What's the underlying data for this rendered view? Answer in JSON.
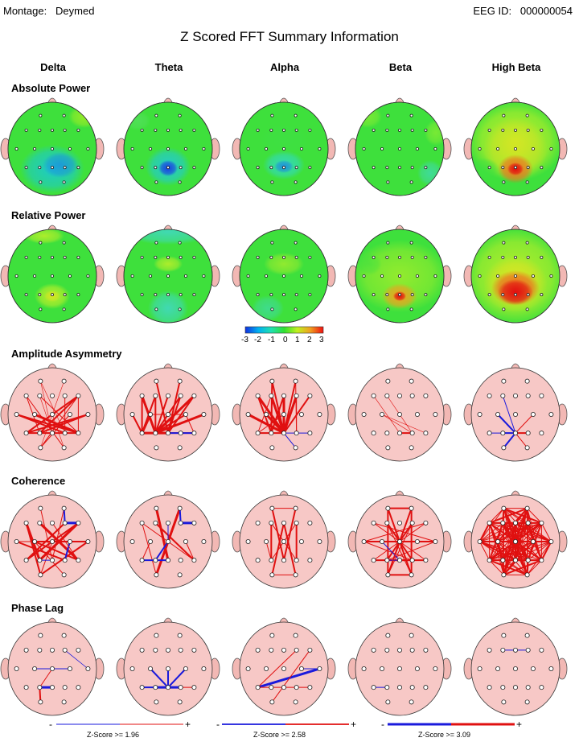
{
  "header": {
    "montage_label": "Montage:",
    "montage_value": "Deymed",
    "eeg_id_label": "EEG ID:",
    "eeg_id_value": "000000054"
  },
  "title": "Z Scored FFT Summary Information",
  "bands": [
    "Delta",
    "Theta",
    "Alpha",
    "Beta",
    "High Beta"
  ],
  "sections": {
    "absolute_power": "Absolute Power",
    "relative_power": "Relative Power",
    "amplitude_asymmetry": "Amplitude Asymmetry",
    "coherence": "Coherence",
    "phase_lag": "Phase Lag"
  },
  "colorbar": {
    "ticks": [
      "-3",
      "-2",
      "-1",
      "0",
      "1",
      "2",
      "3"
    ],
    "colors": [
      "#1030e0",
      "#00b0f0",
      "#20e0b0",
      "#30e030",
      "#c0f020",
      "#f0a020",
      "#f01010"
    ]
  },
  "zscore_legend": [
    {
      "minus": "-",
      "label": "Z-Score >= 1.96",
      "plus": "+",
      "neg_color": "#1a1adc",
      "pos_color": "#e01010"
    },
    {
      "minus": "-",
      "label": "Z-Score >= 2.58",
      "plus": "+",
      "neg_color": "#1a1adc",
      "pos_color": "#e01010"
    },
    {
      "minus": "-",
      "label": "Z-Score >= 3.09",
      "plus": "+",
      "neg_color": "#1a1adc",
      "pos_color": "#e01010"
    }
  ],
  "colors": {
    "head_pink": "#f7c8c6",
    "head_outline": "#303030",
    "green": "#3ee03c",
    "positive_line": "#e01010",
    "negative_line": "#1a1adc"
  }
}
